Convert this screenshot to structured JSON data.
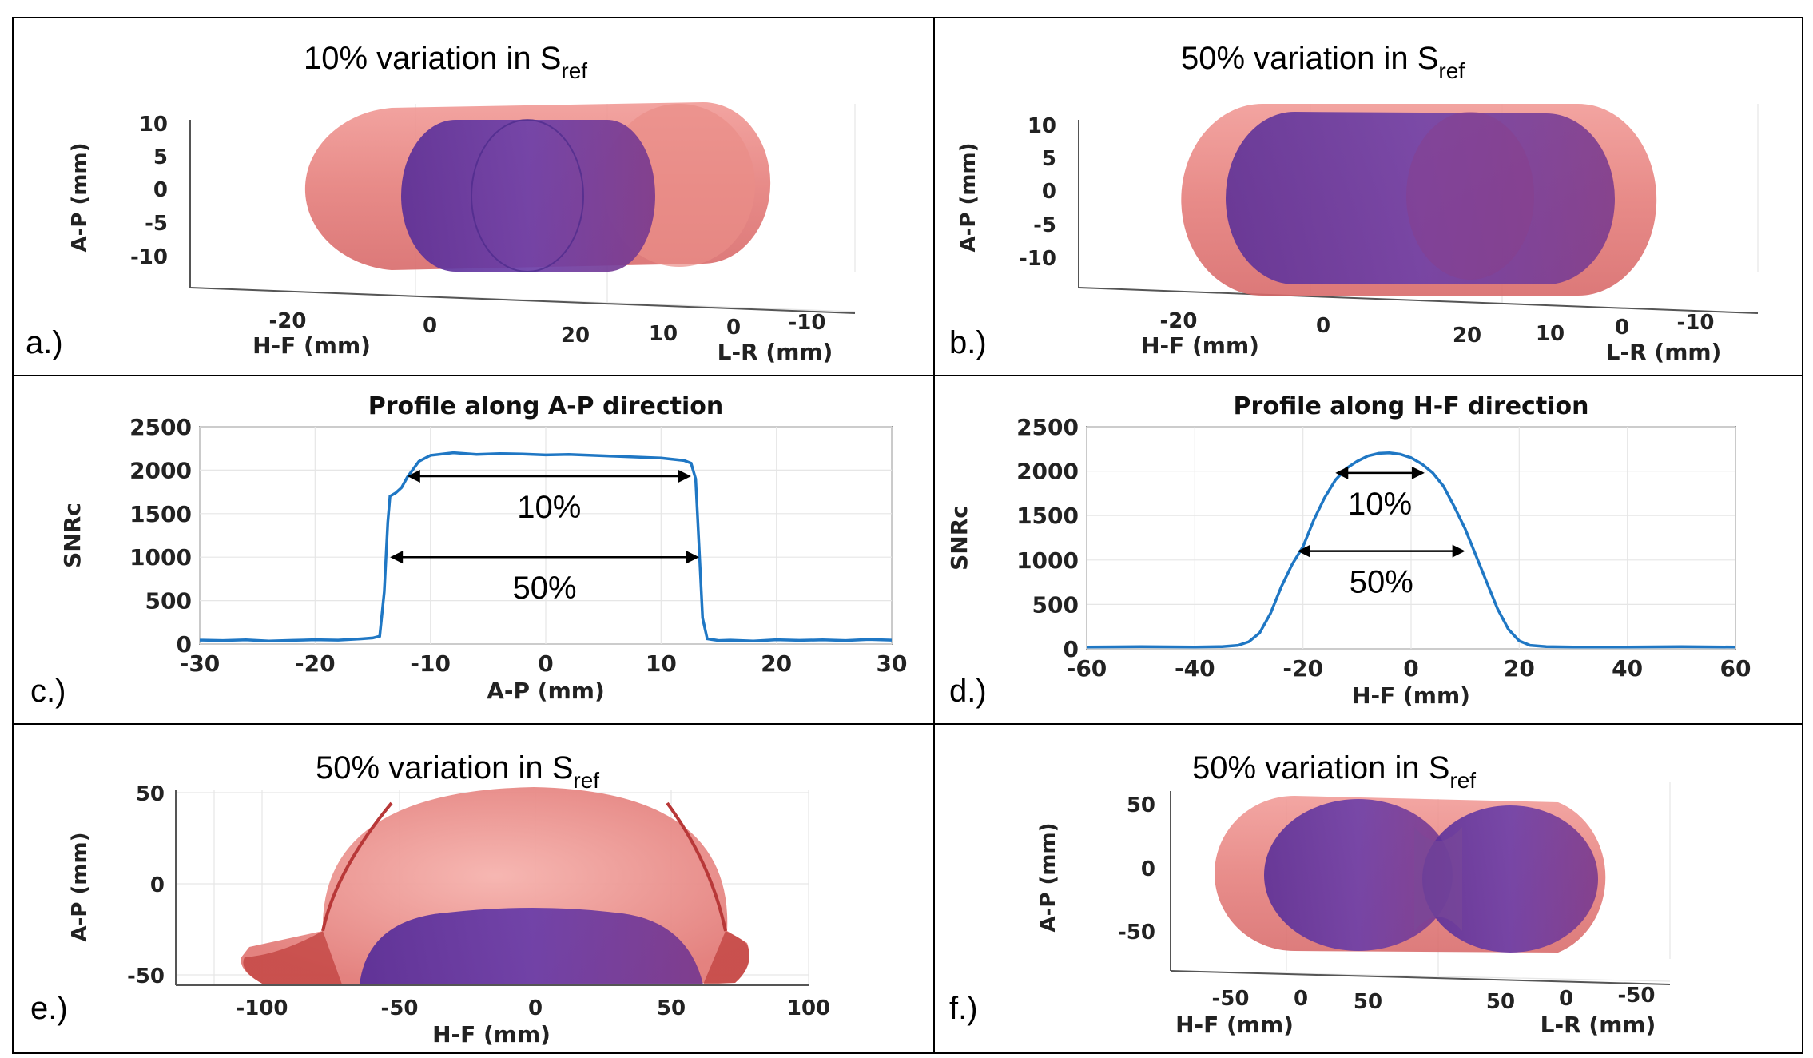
{
  "panels": {
    "a": {
      "label": "a.)",
      "title_main": "10% variation in S",
      "title_sub": "ref",
      "y_axis_label": "A-P (mm)",
      "y_ticks": [
        "10",
        "5",
        "0",
        "-5",
        "-10"
      ],
      "hf_axis_label": "H-F (mm)",
      "hf_ticks": [
        "-20",
        "0",
        "20"
      ],
      "lr_axis_label": "L-R (mm)",
      "lr_ticks": [
        "10",
        "0",
        "-10"
      ]
    },
    "b": {
      "label": "b.)",
      "title_main": "50% variation in S",
      "title_sub": "ref",
      "y_axis_label": "A-P (mm)",
      "y_ticks": [
        "10",
        "5",
        "0",
        "-5",
        "-10"
      ],
      "hf_axis_label": "H-F (mm)",
      "hf_ticks": [
        "-20",
        "0",
        "20"
      ],
      "lr_axis_label": "L-R (mm)",
      "lr_ticks": [
        "10",
        "0",
        "-10"
      ]
    },
    "c": {
      "label": "c.)",
      "arrow_labels": [
        "10%",
        "50%"
      ]
    },
    "d": {
      "label": "d.)",
      "arrow_labels": [
        "10%",
        "50%"
      ]
    },
    "e": {
      "label": "e.)",
      "title_main": "50% variation in S",
      "title_sub": "ref",
      "y_axis_label": "A-P (mm)",
      "y_ticks": [
        "50",
        "0",
        "-50"
      ],
      "x_axis_label": "H-F (mm)",
      "x_ticks": [
        "-100",
        "-50",
        "0",
        "50",
        "100"
      ]
    },
    "f": {
      "label": "f.)",
      "title_main": "50% variation in S",
      "title_sub": "ref",
      "y_axis_label": "A-P (mm)",
      "y_ticks": [
        "50",
        "0",
        "-50"
      ],
      "hf_axis_label": "H-F (mm)",
      "hf_ticks": [
        "-50",
        "0",
        "50"
      ],
      "lr_axis_label": "L-R (mm)",
      "lr_ticks": [
        "50",
        "0",
        "-50"
      ]
    }
  },
  "colors": {
    "outer_surface": "#e88080",
    "inner_surface": "#6a3aa0",
    "profile_line": "#1f77c4"
  },
  "chart_data": [
    {
      "type": "line",
      "title": "Profile along A-P direction",
      "xlabel": "A-P (mm)",
      "ylabel": "SNRc",
      "xlim": [
        -30,
        30
      ],
      "ylim": [
        0,
        2500
      ],
      "xticks": [
        -30,
        -20,
        -10,
        0,
        10,
        20,
        30
      ],
      "yticks": [
        0,
        500,
        1000,
        1500,
        2000,
        2500
      ],
      "grid": true,
      "x": [
        -30,
        -28,
        -26,
        -24,
        -22,
        -20,
        -18,
        -16,
        -15,
        -14.4,
        -14,
        -13.7,
        -13.5,
        -13,
        -12.5,
        -12,
        -11,
        -10,
        -8,
        -6,
        -4,
        -2,
        0,
        2,
        4,
        6,
        8,
        10,
        12,
        12.6,
        13,
        13.3,
        13.6,
        14,
        15,
        16,
        18,
        20,
        22,
        24,
        26,
        28,
        30
      ],
      "y": [
        45,
        40,
        48,
        35,
        42,
        50,
        45,
        60,
        70,
        90,
        600,
        1400,
        1700,
        1740,
        1800,
        1920,
        2100,
        2170,
        2200,
        2180,
        2190,
        2185,
        2175,
        2180,
        2170,
        2160,
        2150,
        2140,
        2110,
        2080,
        1900,
        1100,
        300,
        60,
        40,
        45,
        35,
        50,
        42,
        48,
        40,
        52,
        45
      ],
      "annotations": [
        {
          "text": "10%",
          "x_from": -12,
          "x_to": 12.6,
          "y": 1930
        },
        {
          "text": "50%",
          "x_from": -13.5,
          "x_to": 13.3,
          "y": 1000
        }
      ]
    },
    {
      "type": "line",
      "title": "Profile along H-F direction",
      "xlabel": "H-F (mm)",
      "ylabel": "SNRc",
      "xlim": [
        -60,
        60
      ],
      "ylim": [
        0,
        2500
      ],
      "xticks": [
        -60,
        -40,
        -20,
        0,
        20,
        40,
        60
      ],
      "yticks": [
        0,
        500,
        1000,
        1500,
        2000,
        2500
      ],
      "grid": true,
      "x": [
        -60,
        -50,
        -40,
        -35,
        -32,
        -30,
        -28,
        -26,
        -24,
        -22,
        -20,
        -18,
        -16,
        -14,
        -12,
        -10,
        -8,
        -6,
        -4,
        -2,
        0,
        2,
        4,
        6,
        8,
        10,
        12,
        14,
        16,
        18,
        20,
        22,
        25,
        30,
        40,
        50,
        60
      ],
      "y": [
        20,
        25,
        20,
        25,
        40,
        80,
        180,
        400,
        700,
        950,
        1150,
        1450,
        1700,
        1900,
        2030,
        2110,
        2170,
        2200,
        2205,
        2190,
        2150,
        2080,
        1980,
        1830,
        1600,
        1350,
        1050,
        750,
        450,
        220,
        90,
        40,
        25,
        20,
        20,
        25,
        20
      ],
      "annotations": [
        {
          "text": "10%",
          "x_from": -14,
          "x_to": 2.5,
          "y": 1980
        },
        {
          "text": "50%",
          "x_from": -21,
          "x_to": 10,
          "y": 1100
        }
      ]
    }
  ]
}
